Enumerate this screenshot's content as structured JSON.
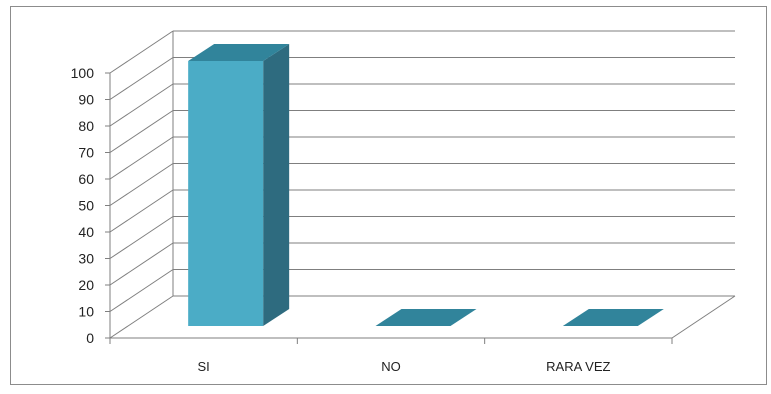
{
  "chart_data": {
    "type": "bar",
    "categories": [
      "SI",
      "NO",
      "RARA VEZ"
    ],
    "values": [
      100,
      0,
      0
    ],
    "ylim": [
      0,
      100
    ],
    "yticks": [
      0,
      10,
      20,
      30,
      40,
      50,
      60,
      70,
      80,
      90,
      100
    ],
    "grid": true,
    "legend": "none",
    "colors": {
      "bar_front": "#4bacc6",
      "bar_side": "#2e6b7f",
      "bar_top": "#31849b",
      "grid": "#7f7f7f",
      "axis": "#7f7f7f",
      "border": "#8c8c8c"
    }
  }
}
